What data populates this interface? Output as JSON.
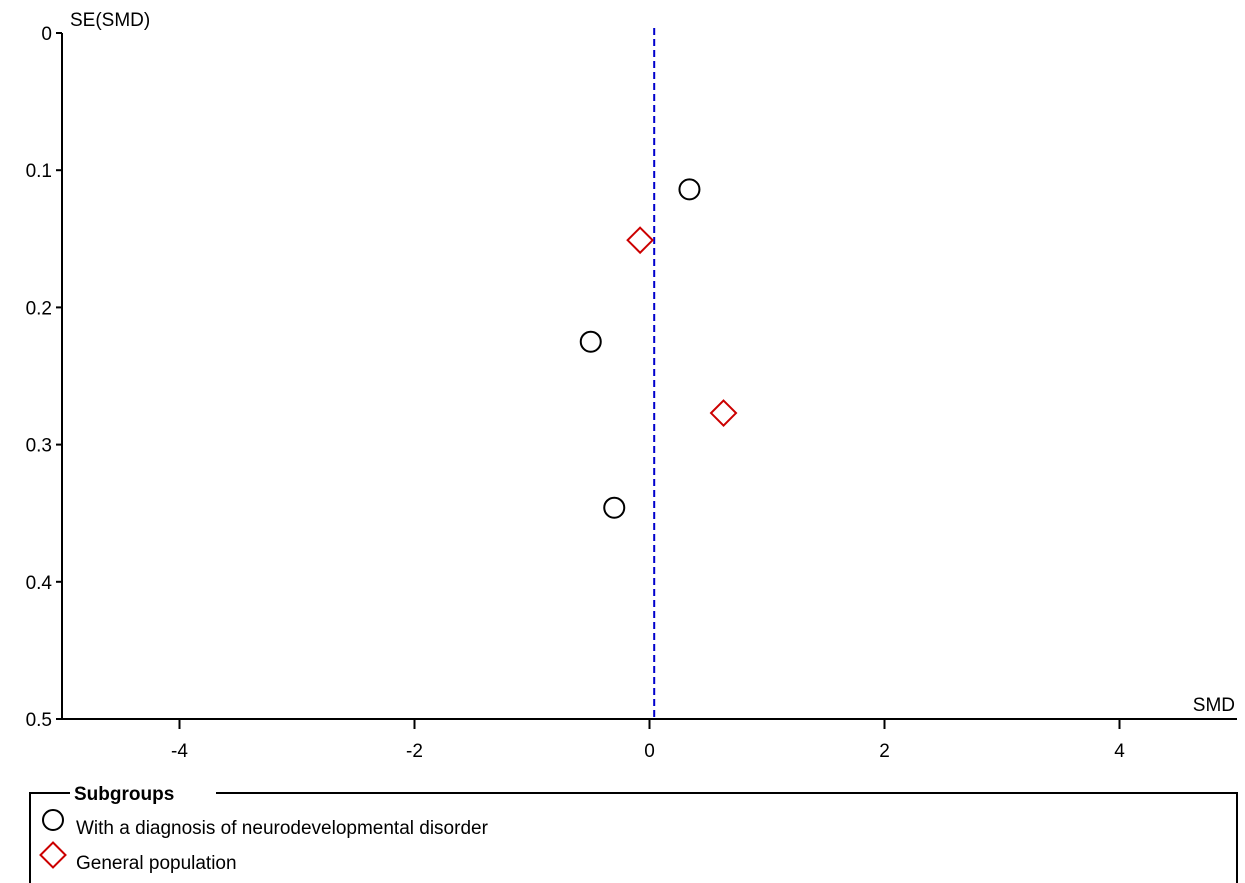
{
  "chart_data": {
    "type": "scatter",
    "title": "",
    "xlabel": "SMD",
    "ylabel": "SE(SMD)",
    "xlim": [
      -5,
      5
    ],
    "ylim": [
      0,
      0.5
    ],
    "y_reversed": true,
    "xticks": [
      -4,
      -2,
      0,
      2,
      4
    ],
    "yticks": [
      0,
      0.1,
      0.2,
      0.3,
      0.4,
      0.5
    ],
    "grid": false,
    "reference_line": {
      "x": 0.04,
      "style": "dashed",
      "color": "#0000cc"
    },
    "legend": {
      "title": "Subgroups",
      "placement": "bottom"
    },
    "series": [
      {
        "name": "With a diagnosis of neurodevelopmental disorder",
        "marker": "circle",
        "color": "#000000",
        "points": [
          {
            "x": 0.34,
            "y": 0.114
          },
          {
            "x": -0.5,
            "y": 0.225
          },
          {
            "x": -0.3,
            "y": 0.346
          }
        ]
      },
      {
        "name": "General population",
        "marker": "diamond",
        "color": "#cc0000",
        "points": [
          {
            "x": -0.08,
            "y": 0.151
          },
          {
            "x": 0.63,
            "y": 0.277
          }
        ]
      }
    ]
  }
}
